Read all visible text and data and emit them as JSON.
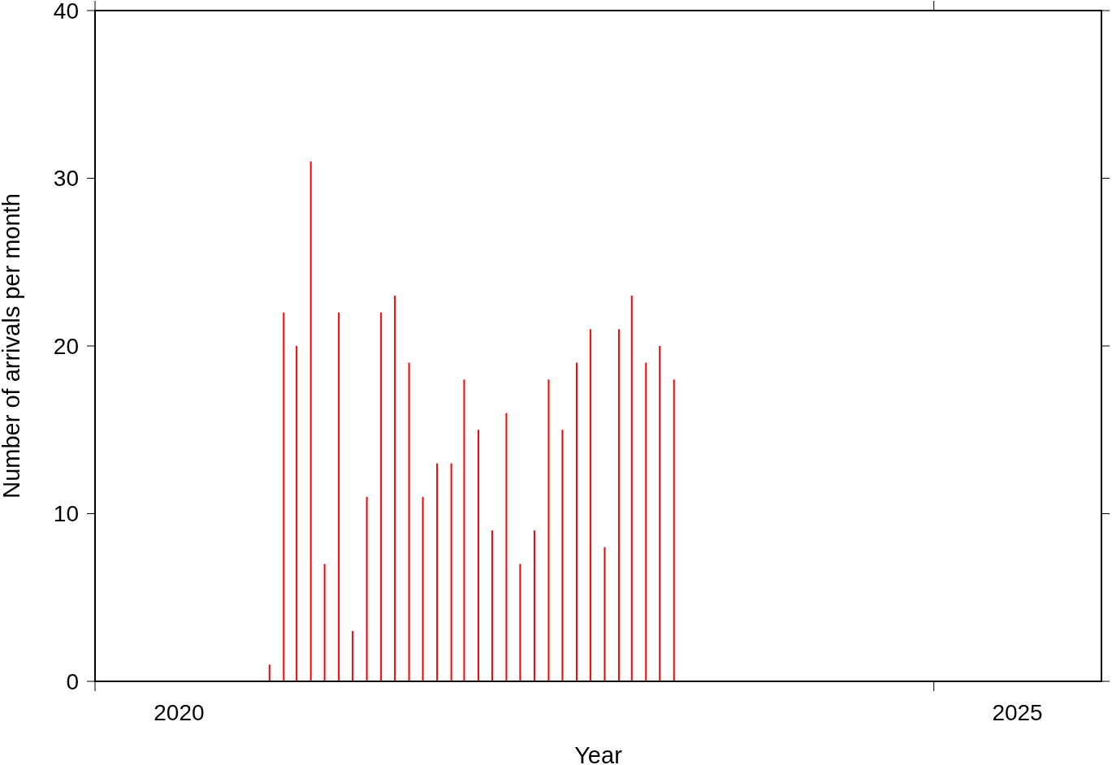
{
  "chart_data": {
    "type": "bar",
    "xlabel": "Year",
    "ylabel": "Number of arrivals per month",
    "x": [
      "2021-01-15",
      "2021-02-15",
      "2021-03-15",
      "2021-04-15",
      "2021-05-15",
      "2021-06-15",
      "2021-07-15",
      "2021-08-15",
      "2021-09-15",
      "2021-10-15",
      "2021-11-15",
      "2021-12-15",
      "2022-01-15",
      "2022-02-15",
      "2022-03-15",
      "2022-04-15",
      "2022-05-15",
      "2022-06-15",
      "2022-07-15",
      "2022-08-15",
      "2022-09-15",
      "2022-10-15",
      "2022-11-15",
      "2022-12-15",
      "2023-01-15",
      "2023-02-15",
      "2023-03-15",
      "2023-04-15",
      "2023-05-15",
      "2023-06-15"
    ],
    "values": [
      1,
      22,
      20,
      31,
      7,
      22,
      3,
      11,
      22,
      23,
      19,
      11,
      13,
      13,
      18,
      15,
      9,
      16,
      7,
      9,
      18,
      15,
      19,
      21,
      8,
      21,
      23,
      19,
      20,
      18
    ],
    "color": "#ff0000",
    "xlim": [
      "2020-01-01",
      "2026-01-01"
    ],
    "xticks": [
      {
        "value": "2020-01-01",
        "label": null
      },
      {
        "value": "2025-01-01",
        "label": null
      },
      {
        "value": "2020-07-02",
        "label": "2020"
      },
      {
        "value": "2025-07-02",
        "label": "2025"
      }
    ],
    "ylim": [
      0,
      40
    ],
    "yticks": [
      0,
      10,
      20,
      30,
      40
    ],
    "grid": false
  }
}
